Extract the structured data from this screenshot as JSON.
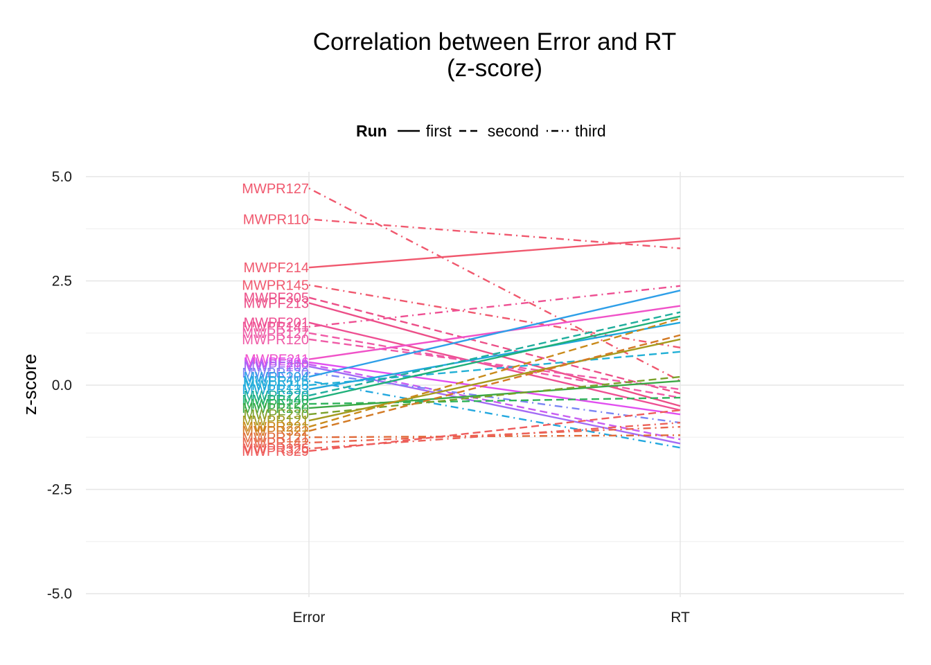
{
  "chart_data": {
    "type": "line",
    "title_line1": "Correlation between Error and RT",
    "title_line2": "(z-score)",
    "xlabel": "",
    "ylabel": "z-score",
    "categories": [
      "Error",
      "RT"
    ],
    "ylim": [
      -5,
      5
    ],
    "yticks": [
      "5.0",
      "2.5",
      "0.0",
      "-2.5",
      "-5.0"
    ],
    "ytick_values": [
      5,
      2.5,
      0,
      -2.5,
      -5
    ],
    "grid": true,
    "legend": {
      "title": "Run",
      "position": "top",
      "entries": [
        {
          "label": "first",
          "dash": "solid"
        },
        {
          "label": "second",
          "dash": "dashed"
        },
        {
          "label": "third",
          "dash": "dotdash"
        }
      ]
    },
    "series": [
      {
        "name": "MWPR127",
        "run": "third",
        "color": "#f0586e",
        "values": [
          4.72,
          0.1
        ]
      },
      {
        "name": "MWPR110",
        "run": "third",
        "color": "#f0586e",
        "values": [
          3.98,
          3.28
        ]
      },
      {
        "name": "MWPF214",
        "run": "first",
        "color": "#f0586e",
        "values": [
          2.82,
          3.52
        ]
      },
      {
        "name": "MWPR145",
        "run": "third",
        "color": "#f0586e",
        "values": [
          2.4,
          0.9
        ]
      },
      {
        "name": "MWPF305",
        "run": "second",
        "color": "#ec4f88",
        "values": [
          2.1,
          -0.2
        ]
      },
      {
        "name": "MWPF213",
        "run": "first",
        "color": "#ec4f88",
        "values": [
          1.97,
          -0.5
        ]
      },
      {
        "name": "MWPF201",
        "run": "first",
        "color": "#ee4f92",
        "values": [
          1.5,
          -0.6
        ]
      },
      {
        "name": "MWPR141",
        "run": "third",
        "color": "#ee4f92",
        "values": [
          1.4,
          2.38
        ]
      },
      {
        "name": "MWPR127",
        "run": "second",
        "color": "#ef5aa6",
        "values": [
          1.25,
          -0.3
        ]
      },
      {
        "name": "MWPR120",
        "run": "second",
        "color": "#ef5aa6",
        "values": [
          1.1,
          -0.1
        ]
      },
      {
        "name": "MWPF211",
        "run": "first",
        "color": "#f052c8",
        "values": [
          0.62,
          1.9
        ]
      },
      {
        "name": "MWPF206",
        "run": "first",
        "color": "#e14ef0",
        "values": [
          0.55,
          -0.7
        ]
      },
      {
        "name": "MWPF210",
        "run": "second",
        "color": "#c85cf2",
        "values": [
          0.5,
          -1.3
        ]
      },
      {
        "name": "MWPF202",
        "run": "first",
        "color": "#a36bf5",
        "values": [
          0.45,
          -1.4
        ]
      },
      {
        "name": "MWPR130",
        "run": "third",
        "color": "#7a85f5",
        "values": [
          0.3,
          -0.9
        ]
      },
      {
        "name": "MWPF204",
        "run": "first",
        "color": "#2e9fe8",
        "values": [
          0.2,
          2.27
        ]
      },
      {
        "name": "MWPR115",
        "run": "third",
        "color": "#23a8df",
        "values": [
          0.1,
          -1.5
        ]
      },
      {
        "name": "MWPF215",
        "run": "second",
        "color": "#22b0d6",
        "values": [
          0.0,
          0.8
        ]
      },
      {
        "name": "MWPR133",
        "run": "first",
        "color": "#1fa7dc",
        "values": [
          -0.1,
          1.5
        ]
      },
      {
        "name": "MWPF220",
        "run": "second",
        "color": "#1eae9c",
        "values": [
          -0.25,
          1.75
        ]
      },
      {
        "name": "MWPR140",
        "run": "first",
        "color": "#1fb07a",
        "values": [
          -0.35,
          1.65
        ]
      },
      {
        "name": "MWPF222",
        "run": "second",
        "color": "#2fb35a",
        "values": [
          -0.45,
          -0.3
        ]
      },
      {
        "name": "MWPR150",
        "run": "first",
        "color": "#3aa845",
        "values": [
          -0.55,
          0.1
        ]
      },
      {
        "name": "MWPF230",
        "run": "second",
        "color": "#7aa12a",
        "values": [
          -0.7,
          0.2
        ]
      },
      {
        "name": "MWPR121",
        "run": "first",
        "color": "#a59a1e",
        "values": [
          -0.85,
          1.1
        ]
      },
      {
        "name": "MWPR221",
        "run": "second",
        "color": "#c98a1a",
        "values": [
          -1.0,
          1.6
        ]
      },
      {
        "name": "MWPR322",
        "run": "second",
        "color": "#d37a24",
        "values": [
          -1.1,
          1.2
        ]
      },
      {
        "name": "MWPR121",
        "run": "third",
        "color": "#e06a3a",
        "values": [
          -1.25,
          -1.2
        ]
      },
      {
        "name": "MWPR142",
        "run": "third",
        "color": "#e9634c",
        "values": [
          -1.38,
          -1.0
        ]
      },
      {
        "name": "MWPR325",
        "run": "third",
        "color": "#ec6058",
        "values": [
          -1.52,
          -0.9
        ]
      },
      {
        "name": "MWPR329",
        "run": "second",
        "color": "#ee5c5c",
        "values": [
          -1.58,
          -0.6
        ]
      }
    ]
  }
}
